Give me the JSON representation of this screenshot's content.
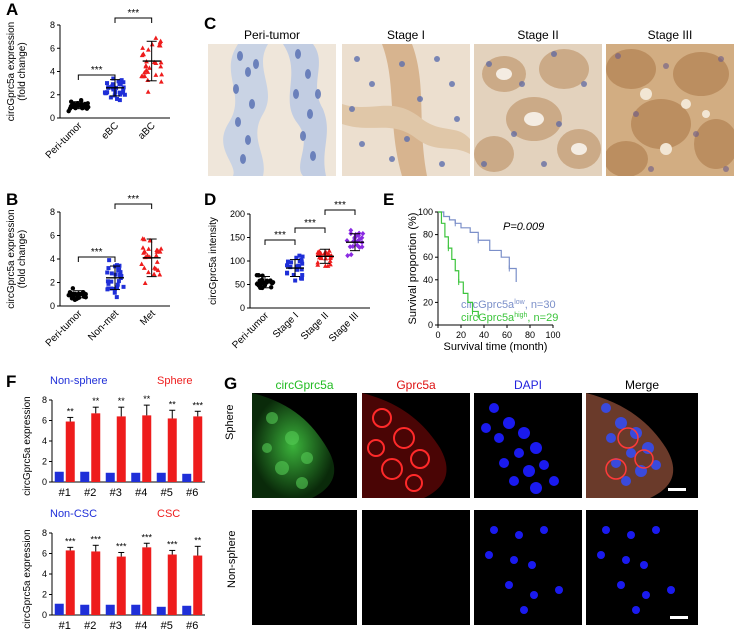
{
  "panels": {
    "A": {
      "label": "A",
      "ylabel": "circGprc5a expression (fold change)",
      "ylabel_line1": "circGprc5a expression",
      "ylabel_line2": "(fold change)",
      "yticks": [
        "0",
        "2",
        "4",
        "6",
        "8"
      ],
      "categories": [
        "Peri-tumor",
        "eBC",
        "aBC"
      ],
      "sig": [
        "***",
        "***"
      ]
    },
    "B": {
      "label": "B",
      "ylabel_line1": "circGprc5a expression",
      "ylabel_line2": "(fold change)",
      "yticks": [
        "0",
        "2",
        "4",
        "6",
        "8"
      ],
      "categories": [
        "Peri-tumor",
        "Non-met",
        "Met"
      ],
      "sig": [
        "***",
        "***"
      ]
    },
    "C": {
      "label": "C",
      "headers": [
        "Peri-tumor",
        "Stage I",
        "Stage II",
        "Stage III"
      ]
    },
    "D": {
      "label": "D",
      "ylabel": "circGprc5a intensity",
      "yticks": [
        "0",
        "50",
        "100",
        "150",
        "200"
      ],
      "categories": [
        "Peri-tumor",
        "Stage I",
        "Stage II",
        "Stage III"
      ],
      "sig": [
        "***",
        "***",
        "***"
      ]
    },
    "E": {
      "label": "E",
      "ylabel": "Survival proportion (%)",
      "xlabel": "Survival time (month)",
      "yticks": [
        "0",
        "20",
        "40",
        "60",
        "80",
        "100"
      ],
      "xticks": [
        "0",
        "20",
        "40",
        "60",
        "80",
        "100"
      ],
      "pvalue": "P=0.009",
      "legend_low": "circGprc5a",
      "legend_low_sup": "low",
      "legend_low_n": ", n=30",
      "legend_high": "circGprc5a",
      "legend_high_sup": "high",
      "legend_high_n": ", n=29",
      "colors": {
        "low": "#7b8fc9",
        "high": "#3cc43c"
      }
    },
    "F": {
      "label": "F",
      "top": {
        "legend_a": "Non-sphere",
        "legend_b": "Sphere",
        "ylabel": "circGprc5a expression",
        "yticks": [
          "0",
          "2",
          "4",
          "6",
          "8"
        ],
        "categories": [
          "#1",
          "#2",
          "#3",
          "#4",
          "#5",
          "#6"
        ],
        "sig": [
          "**",
          "**",
          "**",
          "**",
          "**",
          "***"
        ]
      },
      "bottom": {
        "legend_a": "Non-CSC",
        "legend_b": "CSC",
        "ylabel": "circGprc5a expression",
        "yticks": [
          "0",
          "2",
          "4",
          "6",
          "8"
        ],
        "categories": [
          "#1",
          "#2",
          "#3",
          "#4",
          "#5",
          "#6"
        ],
        "sig": [
          "***",
          "***",
          "***",
          "***",
          "***",
          "**"
        ]
      },
      "colors": {
        "control": "#1f2fd8",
        "treated": "#ee1c1c"
      }
    },
    "G": {
      "label": "G",
      "headers": [
        "circGprc5a",
        "Gprc5a",
        "DAPI",
        "Merge"
      ],
      "header_colors": [
        "#22bb22",
        "#dd1111",
        "#2222dd",
        "#000000"
      ],
      "rows": [
        "Sphere",
        "Non-sphere"
      ]
    }
  },
  "chart_data": [
    {
      "type": "scatter",
      "panel": "A",
      "categories": [
        "Peri-tumor",
        "eBC",
        "aBC"
      ],
      "means": [
        1.1,
        2.6,
        4.9
      ],
      "sd": [
        0.3,
        0.7,
        1.7
      ],
      "ylabel": "circGprc5a expression (fold change)",
      "ylim": [
        0,
        8
      ]
    },
    {
      "type": "scatter",
      "panel": "B",
      "categories": [
        "Peri-tumor",
        "Non-met",
        "Met"
      ],
      "means": [
        1.0,
        2.4,
        4.1
      ],
      "sd": [
        0.3,
        1.0,
        1.6
      ],
      "ylim": [
        0,
        8
      ]
    },
    {
      "type": "scatter",
      "panel": "D",
      "categories": [
        "Peri-tumor",
        "Stage I",
        "Stage II",
        "Stage III"
      ],
      "means": [
        55,
        85,
        110,
        140
      ],
      "sd": [
        12,
        18,
        15,
        18
      ],
      "ylabel": "circGprc5a intensity",
      "ylim": [
        0,
        200
      ]
    },
    {
      "type": "line",
      "panel": "E",
      "xlabel": "Survival time (month)",
      "ylabel": "Survival proportion (%)",
      "series": [
        {
          "name": "low",
          "x": [
            0,
            5,
            10,
            15,
            20,
            28,
            35,
            45,
            55,
            62,
            68
          ],
          "y": [
            100,
            96,
            93,
            90,
            86,
            82,
            75,
            66,
            60,
            50,
            38
          ]
        },
        {
          "name": "high",
          "x": [
            0,
            3,
            6,
            9,
            12,
            15,
            18,
            22,
            26,
            30,
            35
          ],
          "y": [
            100,
            90,
            78,
            68,
            58,
            48,
            38,
            28,
            20,
            12,
            6
          ]
        }
      ],
      "xlim": [
        0,
        100
      ],
      "ylim": [
        0,
        100
      ]
    },
    {
      "type": "bar",
      "panel": "F-top",
      "categories": [
        "#1",
        "#2",
        "#3",
        "#4",
        "#5",
        "#6"
      ],
      "series": [
        {
          "name": "Non-sphere",
          "values": [
            1.0,
            1.0,
            0.9,
            0.9,
            0.9,
            0.8
          ]
        },
        {
          "name": "Sphere",
          "values": [
            5.9,
            6.7,
            6.4,
            6.5,
            6.2,
            6.4
          ]
        }
      ],
      "errors": [
        0.4,
        0.6,
        0.9,
        1.0,
        0.8,
        0.5
      ],
      "ylabel": "circGprc5a expression",
      "ylim": [
        0,
        8
      ]
    },
    {
      "type": "bar",
      "panel": "F-bottom",
      "categories": [
        "#1",
        "#2",
        "#3",
        "#4",
        "#5",
        "#6"
      ],
      "series": [
        {
          "name": "Non-CSC",
          "values": [
            1.1,
            1.0,
            1.0,
            1.0,
            0.8,
            0.9
          ]
        },
        {
          "name": "CSC",
          "values": [
            6.3,
            6.2,
            5.7,
            6.6,
            5.9,
            5.8
          ]
        }
      ],
      "errors": [
        0.3,
        0.6,
        0.4,
        0.4,
        0.4,
        0.9
      ],
      "ylabel": "circGprc5a expression",
      "ylim": [
        0,
        8
      ]
    }
  ]
}
